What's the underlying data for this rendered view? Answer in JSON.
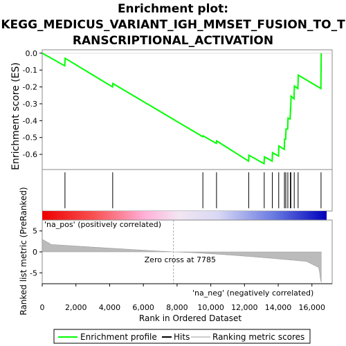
{
  "chart_data": {
    "type": "line",
    "title_lines": [
      "Enrichment plot:",
      "KEGG_MEDICUS_VARIANT_IGH_MMSET_FUSION_TO_T",
      "RANSCRIPTIONAL_ACTIVATION"
    ],
    "x_label": "Rank in Ordered Dataset",
    "x_range": [
      0,
      17200
    ],
    "x_ticks": [
      0,
      2000,
      4000,
      6000,
      8000,
      10000,
      12000,
      14000,
      16000
    ],
    "x_tick_labels": [
      "0",
      "2,000",
      "4,000",
      "6,000",
      "8,000",
      "10,000",
      "12,000",
      "14,000",
      "16,000"
    ],
    "es_panel": {
      "ylabel": "Enrichment score (ES)",
      "ylim": [
        -0.69,
        0.02
      ],
      "y_ticks": [
        0.0,
        -0.1,
        -0.2,
        -0.3,
        -0.4,
        -0.5,
        -0.6
      ],
      "y_tick_labels": [
        "0.0",
        "-0.1",
        "-0.2",
        "-0.3",
        "-0.4",
        "-0.5",
        "-0.6"
      ],
      "color": "#00ff00",
      "points": [
        [
          0,
          0.0
        ],
        [
          1340,
          -0.075
        ],
        [
          1360,
          -0.03
        ],
        [
          4170,
          -0.2
        ],
        [
          4190,
          -0.18
        ],
        [
          9520,
          -0.495
        ],
        [
          9540,
          -0.49
        ],
        [
          10330,
          -0.535
        ],
        [
          10350,
          -0.52
        ],
        [
          12240,
          -0.64
        ],
        [
          12260,
          -0.605
        ],
        [
          13160,
          -0.655
        ],
        [
          13180,
          -0.615
        ],
        [
          13640,
          -0.64
        ],
        [
          13660,
          -0.59
        ],
        [
          14020,
          -0.61
        ],
        [
          14040,
          -0.55
        ],
        [
          14360,
          -0.57
        ],
        [
          14380,
          -0.51
        ],
        [
          14440,
          -0.51
        ],
        [
          14460,
          -0.45
        ],
        [
          14560,
          -0.45
        ],
        [
          14580,
          -0.385
        ],
        [
          14710,
          -0.39
        ],
        [
          14730,
          -0.33
        ],
        [
          14740,
          -0.33
        ],
        [
          14760,
          -0.255
        ],
        [
          14940,
          -0.27
        ],
        [
          14960,
          -0.195
        ],
        [
          15170,
          -0.21
        ],
        [
          15190,
          -0.13
        ],
        [
          16530,
          -0.21
        ],
        [
          16550,
          0.0
        ]
      ]
    },
    "hits": [
      1350,
      4180,
      9530,
      10340,
      12250,
      13170,
      13650,
      14030,
      14370,
      14450,
      14570,
      14720,
      14750,
      14950,
      15180,
      16540
    ],
    "ranked_panel": {
      "ylabel": "Ranked list metric (PreRanked)",
      "ylim": [
        -7.6,
        7.6
      ],
      "y_ticks": [
        5,
        0,
        -5
      ],
      "y_tick_labels": [
        "5",
        "0",
        "-5"
      ],
      "zero_cross_label": "Zero cross at 7785",
      "zero_cross": 7785,
      "pos_label": "'na_pos' (positively correlated)",
      "neg_label": "'na_neg' (negatively correlated)",
      "pos_color": "#ff0000",
      "neg_color": "#0000ff"
    },
    "legend": {
      "items": [
        {
          "label": "Enrichment profile",
          "color": "#00ff00"
        },
        {
          "label": "Hits",
          "color": "#000000"
        },
        {
          "label": "Ranking metric scores",
          "color": "#cccccc"
        }
      ]
    }
  }
}
